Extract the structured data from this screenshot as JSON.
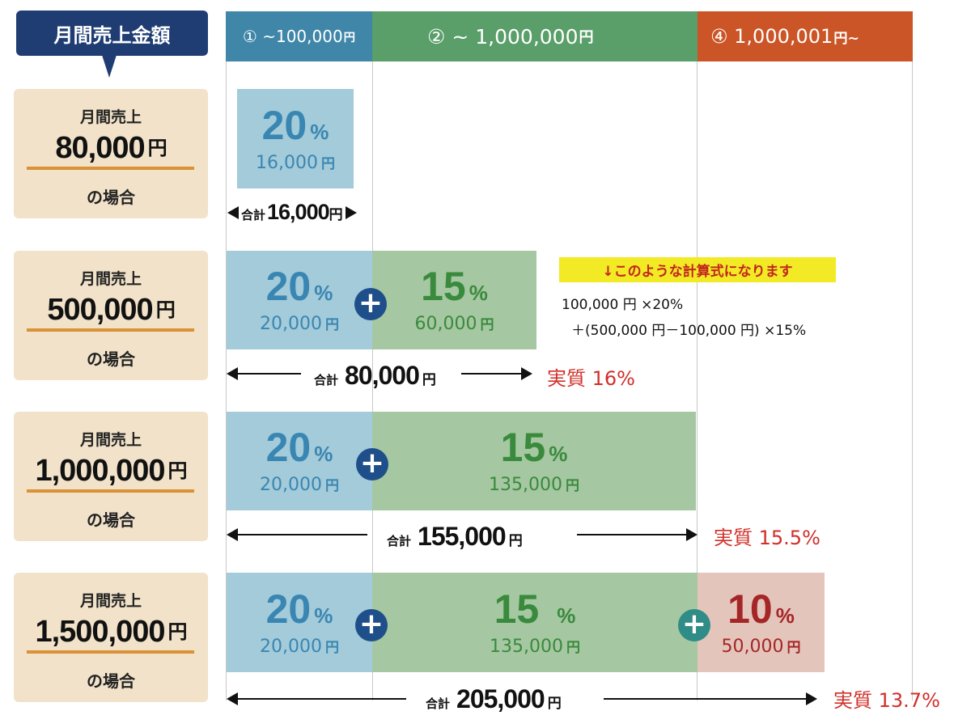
{
  "header": {
    "title": "月間売上金額"
  },
  "tiers": [
    {
      "label": "① ~100,000",
      "yen": "円",
      "color": "#3f86a8"
    },
    {
      "label": "② ~ 1,000,000",
      "yen": "円",
      "color": "#5a9e69"
    },
    {
      "label": "④ 1,000,001",
      "yen": "円~",
      "color": "#cb5526"
    }
  ],
  "cases": [
    {
      "top": "月間売上",
      "amount": "80,000",
      "yen": "円",
      "bottom": "の場合",
      "segments": [
        {
          "pct": "20",
          "unit": "%",
          "amount": "16,000",
          "yen": "円"
        }
      ],
      "total": {
        "label": "合計",
        "value": "16,000",
        "yen": "円"
      }
    },
    {
      "top": "月間売上",
      "amount": "500,000",
      "yen": "円",
      "bottom": "の場合",
      "segments": [
        {
          "pct": "20",
          "unit": "%",
          "amount": "20,000",
          "yen": "円"
        },
        {
          "pct": "15",
          "unit": "%",
          "amount": "60,000",
          "yen": "円"
        }
      ],
      "total": {
        "label": "合計",
        "value": "80,000",
        "yen": "円"
      },
      "effective": "実質 16%"
    },
    {
      "top": "月間売上",
      "amount": "1,000,000",
      "yen": "円",
      "bottom": "の場合",
      "segments": [
        {
          "pct": "20",
          "unit": "%",
          "amount": "20,000",
          "yen": "円"
        },
        {
          "pct": "15",
          "unit": "%",
          "amount": "135,000",
          "yen": "円"
        }
      ],
      "total": {
        "label": "合計",
        "value": "155,000",
        "yen": "円"
      },
      "effective": "実質 15.5%"
    },
    {
      "top": "月間売上",
      "amount": "1,500,000",
      "yen": "円",
      "bottom": "の場合",
      "segments": [
        {
          "pct": "20",
          "unit": "%",
          "amount": "20,000",
          "yen": "円"
        },
        {
          "pct": "15",
          "unit": "%",
          "amount": "135,000",
          "yen": "円"
        },
        {
          "pct": "10",
          "unit": "%",
          "amount": "50,000",
          "yen": "円"
        }
      ],
      "total": {
        "label": "合計",
        "value": "205,000",
        "yen": "円"
      },
      "effective": "実質 13.7%"
    }
  ],
  "note": {
    "banner": "↓このような計算式になります",
    "line1": "100,000 円 ×20%",
    "line2": "＋(500,000 円－100,000 円) ×15%"
  },
  "plus_symbol": "+",
  "colors": {
    "navy": "#1f3d73",
    "tier1": "#3f86a8",
    "tier2": "#5a9e69",
    "tier3": "#cb5526",
    "case_bg": "#f1e2c9",
    "underline": "#d99235",
    "bar_blue": "#a3cbd9",
    "bar_green": "#a5c7a1",
    "bar_red": "#e4c5bc",
    "effective_red": "#d12f2a",
    "note_yellow": "#f2ea24"
  }
}
